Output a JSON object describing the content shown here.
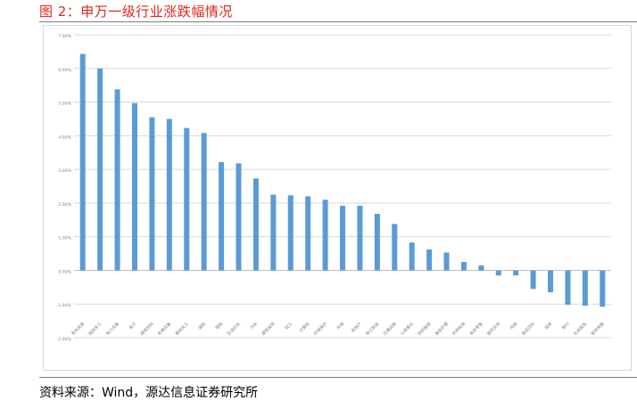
{
  "figure": {
    "title": "图 2：申万一级行业涨跌幅情况",
    "source": "资料来源：Wind，源达信息证券研究所"
  },
  "colors": {
    "title": "#e0251b",
    "bar": "#5b9bd5",
    "gridline": "#d9d9d9",
    "tick_label": "#7f7f7f"
  },
  "chart_data": {
    "type": "bar",
    "title": "",
    "xlabel": "",
    "ylabel": "",
    "ylim": [
      -0.02,
      0.07
    ],
    "y_ticks": [
      -0.02,
      -0.01,
      0.0,
      0.01,
      0.02,
      0.03,
      0.04,
      0.05,
      0.06,
      0.07
    ],
    "y_tick_labels": [
      "-2.00%",
      "-1.00%",
      "0.00%",
      "1.00%",
      "2.00%",
      "3.00%",
      "4.00%",
      "5.00%",
      "6.00%",
      "7.00%"
    ],
    "grid": true,
    "legend": "none",
    "categories": [
      "有色金属",
      "国防军工",
      "电力设备",
      "电子",
      "建筑材料",
      "机械设备",
      "基础化工",
      "通信",
      "钢铁",
      "石油石化",
      "汽车",
      "建筑装饰",
      "轻工",
      "计算机",
      "环境保护",
      "环保",
      "房地产",
      "轻工制造",
      "交通运输",
      "公用事业",
      "纺织服装",
      "美容护理",
      "农林牧渔",
      "商贸零售",
      "医药生物",
      "传媒",
      "食品饮料",
      "煤炭",
      "银行",
      "社会服务",
      "家用电器"
    ],
    "values": [
      0.0643,
      0.06,
      0.0538,
      0.0497,
      0.0455,
      0.045,
      0.0423,
      0.0408,
      0.0322,
      0.0318,
      0.0273,
      0.0225,
      0.0223,
      0.022,
      0.021,
      0.0192,
      0.0192,
      0.0168,
      0.0138,
      0.0083,
      0.0062,
      0.0053,
      0.0025,
      0.0015,
      -0.0015,
      -0.0015,
      -0.0055,
      -0.0065,
      -0.0102,
      -0.0105,
      -0.0108
    ]
  }
}
